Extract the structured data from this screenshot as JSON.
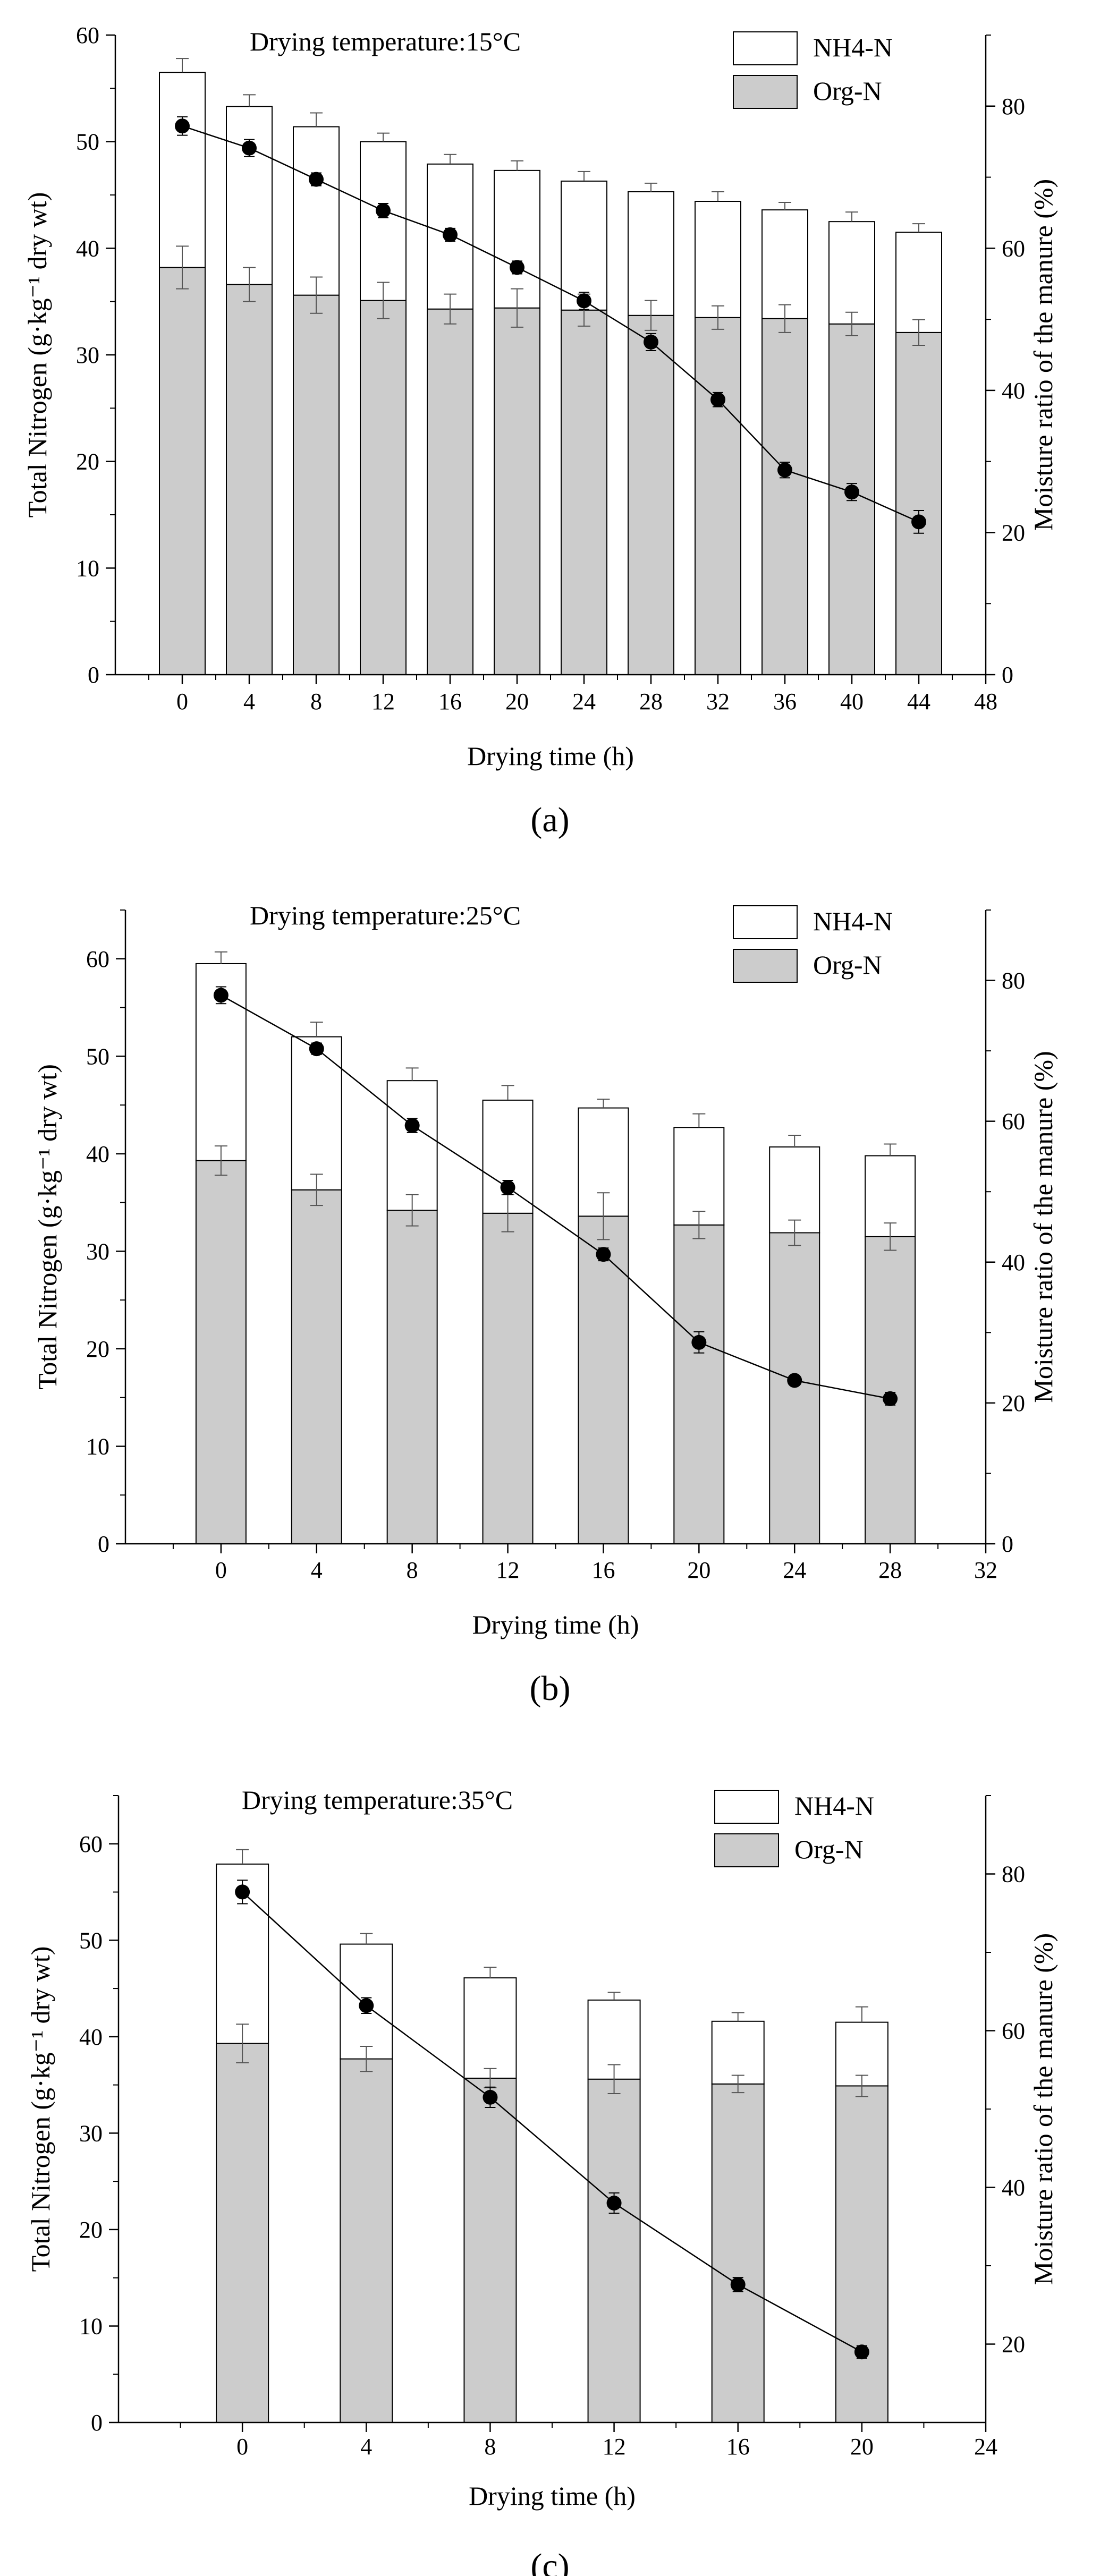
{
  "chart_data": [
    {
      "type": "bar",
      "stacked": true,
      "panel_label": "(a)",
      "panel_letter": "a",
      "title": "Drying temperature:15°C",
      "xlabel": "Drying time (h)",
      "ylabel": "Total Nitrogen (g·kg⁻¹ dry wt)",
      "y2label": "Moisture ratio of the manure (%)",
      "xlim": [
        -4,
        48
      ],
      "xticks": [
        0,
        4,
        8,
        12,
        16,
        20,
        24,
        28,
        32,
        36,
        40,
        44,
        48
      ],
      "ylim": [
        0,
        60
      ],
      "yticks": [
        0,
        10,
        20,
        30,
        40,
        50,
        60
      ],
      "y2lim": [
        0,
        90
      ],
      "y2ticks": [
        0,
        20,
        40,
        60,
        80
      ],
      "legend_position": "top-right",
      "x": [
        0,
        4,
        8,
        12,
        16,
        20,
        24,
        28,
        32,
        36,
        40,
        44
      ],
      "series": [
        {
          "name": "Org-N",
          "kind": "bar",
          "color": "#cccccc",
          "values": [
            38.2,
            36.6,
            35.6,
            35.1,
            34.3,
            34.4,
            34.2,
            33.7,
            33.5,
            33.4,
            32.9,
            32.1
          ],
          "errors": [
            2.0,
            1.6,
            1.7,
            1.7,
            1.4,
            1.8,
            1.5,
            1.4,
            1.1,
            1.3,
            1.1,
            1.2
          ]
        },
        {
          "name": "NH4-N",
          "kind": "bar",
          "color": "#ffffff",
          "values": [
            18.3,
            16.7,
            15.8,
            14.9,
            13.6,
            12.9,
            12.1,
            11.6,
            10.9,
            10.2,
            9.6,
            9.4
          ],
          "errors": [
            1.3,
            1.1,
            1.3,
            0.8,
            0.9,
            0.9,
            0.9,
            0.8,
            0.9,
            0.7,
            0.9,
            0.8
          ]
        },
        {
          "name": "Moisture ratio",
          "kind": "line",
          "axis": "right",
          "color": "#000000",
          "values": [
            77.2,
            74.1,
            69.7,
            65.3,
            61.9,
            57.3,
            52.6,
            46.8,
            38.7,
            28.8,
            25.7,
            21.5
          ],
          "errors": [
            1.3,
            1.2,
            0.9,
            1.0,
            0.9,
            0.9,
            1.2,
            1.2,
            1.0,
            1.1,
            1.2,
            1.6
          ]
        }
      ]
    },
    {
      "type": "bar",
      "stacked": true,
      "panel_label": "(b)",
      "panel_letter": "b",
      "title": "Drying temperature:25°C",
      "xlabel": "Drying time (h)",
      "ylabel": "Total Nitrogen (g·kg⁻¹ dry wt)",
      "y2label": "Moisture ratio of the manure (%)",
      "xlim": [
        -4,
        32
      ],
      "xticks": [
        0,
        4,
        8,
        12,
        16,
        20,
        24,
        28,
        32
      ],
      "ylim": [
        0,
        65
      ],
      "yticks": [
        0,
        10,
        20,
        30,
        40,
        50,
        60
      ],
      "y2lim": [
        0,
        90
      ],
      "y2ticks": [
        0,
        20,
        40,
        60,
        80
      ],
      "legend_position": "top-right",
      "x": [
        0,
        4,
        8,
        12,
        16,
        20,
        24,
        28
      ],
      "series": [
        {
          "name": "Org-N",
          "kind": "bar",
          "color": "#cccccc",
          "values": [
            39.3,
            36.3,
            34.2,
            33.9,
            33.6,
            32.7,
            31.9,
            31.5
          ],
          "errors": [
            1.5,
            1.6,
            1.6,
            1.9,
            2.4,
            1.4,
            1.3,
            1.4
          ]
        },
        {
          "name": "NH4-N",
          "kind": "bar",
          "color": "#ffffff",
          "values": [
            20.2,
            15.7,
            13.3,
            11.6,
            11.1,
            10.0,
            8.8,
            8.3
          ],
          "errors": [
            1.2,
            1.5,
            1.3,
            1.5,
            0.9,
            1.4,
            1.2,
            1.2
          ]
        },
        {
          "name": "Moisture ratio",
          "kind": "line",
          "axis": "right",
          "color": "#000000",
          "values": [
            77.9,
            70.3,
            59.4,
            50.6,
            41.1,
            28.6,
            23.2,
            20.6
          ],
          "errors": [
            1.2,
            0.8,
            1.0,
            1.0,
            0.9,
            1.5,
            0.6,
            0.9
          ]
        }
      ]
    },
    {
      "type": "bar",
      "stacked": true,
      "panel_label": "(c)",
      "panel_letter": "c",
      "title": "Drying temperature:35°C",
      "xlabel": "Drying time (h)",
      "ylabel": "Total Nitrogen (g·kg⁻¹ dry wt)",
      "y2label": "Moisture ratio of the manure (%)",
      "xlim": [
        -4,
        24
      ],
      "xticks": [
        0,
        4,
        8,
        12,
        16,
        20,
        24
      ],
      "ylim": [
        0,
        65
      ],
      "yticks": [
        0,
        10,
        20,
        30,
        40,
        50,
        60
      ],
      "y2lim": [
        10,
        90
      ],
      "y2ticks": [
        20,
        40,
        60,
        80
      ],
      "legend_position": "top-right",
      "x": [
        0,
        4,
        8,
        12,
        16,
        20
      ],
      "series": [
        {
          "name": "Org-N",
          "kind": "bar",
          "color": "#cccccc",
          "values": [
            39.3,
            37.7,
            35.7,
            35.6,
            35.1,
            34.9
          ],
          "errors": [
            2.0,
            1.3,
            1.0,
            1.5,
            0.9,
            1.1
          ]
        },
        {
          "name": "NH4-N",
          "kind": "bar",
          "color": "#ffffff",
          "values": [
            18.6,
            11.9,
            10.4,
            8.2,
            6.5,
            6.6
          ],
          "errors": [
            1.5,
            1.1,
            1.1,
            0.8,
            0.9,
            1.6
          ]
        },
        {
          "name": "Moisture ratio",
          "kind": "line",
          "axis": "right",
          "color": "#000000",
          "values": [
            77.7,
            63.2,
            51.5,
            38.0,
            27.6,
            19.0
          ],
          "errors": [
            1.5,
            1.0,
            1.3,
            1.3,
            0.9,
            0.8
          ]
        }
      ]
    }
  ]
}
